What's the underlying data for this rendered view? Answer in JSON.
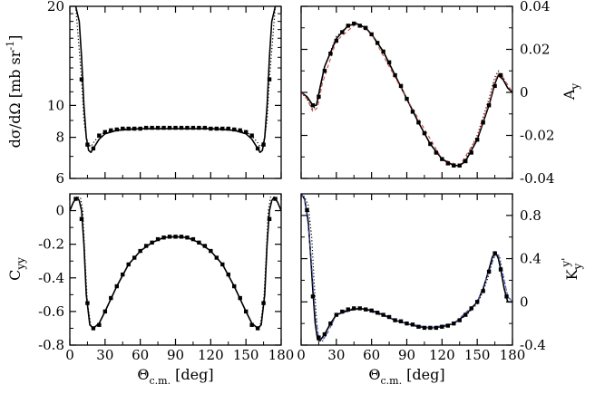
{
  "chart_data": [
    {
      "type": "line",
      "panel": "top-left",
      "ylabel": "dσ/dΩ [mb sr⁻¹]",
      "yscale": "log",
      "xlim": [
        0,
        180
      ],
      "ylim": [
        6,
        20
      ],
      "xticks": [
        0,
        30,
        60,
        90,
        120,
        150,
        180
      ],
      "yticks": [
        {
          "value": 6,
          "label": "6"
        },
        {
          "value": 8,
          "label": "8"
        },
        {
          "value": 10,
          "label": "10"
        },
        {
          "value": 20,
          "label": "20"
        }
      ],
      "series": [
        {
          "style": "solid",
          "color": "#000000",
          "x": [
            5,
            8,
            10,
            12,
            14,
            16,
            18,
            20,
            25,
            30,
            40,
            50,
            60,
            70,
            80,
            90,
            100,
            110,
            120,
            130,
            140,
            150,
            155,
            160,
            162,
            164,
            166,
            168,
            170,
            172,
            175
          ],
          "y": [
            20,
            18,
            14,
            10,
            8,
            7.3,
            7.2,
            7.4,
            7.9,
            8.2,
            8.4,
            8.45,
            8.5,
            8.5,
            8.5,
            8.5,
            8.5,
            8.5,
            8.5,
            8.45,
            8.4,
            8.2,
            7.9,
            7.4,
            7.2,
            7.3,
            8,
            10,
            14,
            18,
            20
          ]
        },
        {
          "style": "dotted",
          "color": "#000000",
          "x": [
            5,
            10,
            12,
            14,
            16,
            18,
            20,
            25,
            30,
            40,
            50,
            60,
            70,
            80,
            90,
            100,
            110,
            120,
            130,
            140,
            150,
            155,
            160,
            162,
            164,
            166,
            168,
            170,
            175
          ],
          "y": [
            20,
            12,
            9,
            8,
            7.6,
            7.5,
            7.7,
            8.1,
            8.3,
            8.45,
            8.5,
            8.5,
            8.5,
            8.5,
            8.5,
            8.5,
            8.5,
            8.5,
            8.5,
            8.45,
            8.3,
            8.1,
            7.7,
            7.5,
            7.6,
            8,
            9,
            12,
            20
          ]
        },
        {
          "style": "squares",
          "color": "#000000",
          "x": [
            10,
            15,
            20,
            25,
            30,
            35,
            40,
            45,
            50,
            55,
            60,
            65,
            70,
            75,
            80,
            85,
            90,
            95,
            100,
            105,
            110,
            115,
            120,
            125,
            130,
            135,
            140,
            145,
            150,
            155,
            160,
            165,
            170
          ],
          "y": [
            12,
            7.6,
            7.4,
            8.1,
            8.3,
            8.4,
            8.45,
            8.5,
            8.5,
            8.5,
            8.5,
            8.55,
            8.55,
            8.55,
            8.55,
            8.55,
            8.55,
            8.55,
            8.55,
            8.55,
            8.55,
            8.55,
            8.5,
            8.5,
            8.5,
            8.5,
            8.45,
            8.4,
            8.3,
            8.1,
            7.4,
            7.6,
            12
          ]
        }
      ]
    },
    {
      "type": "line",
      "panel": "top-right",
      "ylabel": "Ay",
      "ylabel_main": "A",
      "ylabel_sub": "y",
      "xlim": [
        0,
        180
      ],
      "ylim": [
        -0.04,
        0.04
      ],
      "xticks": [
        0,
        30,
        60,
        90,
        120,
        150,
        180
      ],
      "yticks": [
        {
          "value": -0.04,
          "label": "-0.04"
        },
        {
          "value": -0.02,
          "label": "-0.02"
        },
        {
          "value": 0,
          "label": "0"
        },
        {
          "value": 0.02,
          "label": "0.02"
        },
        {
          "value": 0.04,
          "label": "0.04"
        }
      ],
      "series": [
        {
          "style": "solid",
          "color": "#000000",
          "x": [
            0,
            5,
            10,
            13,
            16,
            20,
            30,
            40,
            47,
            55,
            60,
            70,
            80,
            90,
            100,
            110,
            120,
            130,
            135,
            140,
            150,
            160,
            165,
            168,
            172,
            176,
            180
          ],
          "y": [
            0,
            -0.002,
            -0.006,
            -0.006,
            0.002,
            0.012,
            0.025,
            0.031,
            0.032,
            0.03,
            0.027,
            0.019,
            0.008,
            -0.003,
            -0.014,
            -0.024,
            -0.031,
            -0.034,
            -0.034,
            -0.032,
            -0.022,
            -0.006,
            0.004,
            0.008,
            0.006,
            0.002,
            0
          ]
        },
        {
          "style": "dotted",
          "color": "#000000",
          "x": [
            0,
            5,
            10,
            14,
            18,
            20,
            30,
            40,
            47,
            55,
            60,
            70,
            80,
            90,
            100,
            110,
            120,
            130,
            135,
            140,
            150,
            160,
            165,
            168,
            172,
            176,
            180
          ],
          "y": [
            0,
            -0.003,
            -0.008,
            -0.005,
            0.006,
            0.012,
            0.026,
            0.031,
            0.032,
            0.03,
            0.027,
            0.019,
            0.008,
            -0.003,
            -0.014,
            -0.024,
            -0.031,
            -0.034,
            -0.034,
            -0.031,
            -0.02,
            -0.003,
            0.007,
            0.01,
            0.007,
            0.002,
            0
          ]
        },
        {
          "style": "dashed",
          "color": "#d04a4a",
          "x": [
            0,
            5,
            10,
            14,
            18,
            30,
            47,
            60,
            90,
            120,
            135,
            150,
            160,
            165,
            168,
            172,
            180
          ],
          "y": [
            0,
            -0.003,
            -0.009,
            -0.007,
            0.004,
            0.024,
            0.032,
            0.027,
            -0.003,
            -0.031,
            -0.034,
            -0.021,
            -0.005,
            0.005,
            0.009,
            0.007,
            0
          ]
        },
        {
          "style": "squares",
          "color": "#000000",
          "x": [
            10,
            15,
            20,
            25,
            30,
            35,
            40,
            45,
            50,
            55,
            60,
            65,
            70,
            75,
            80,
            85,
            90,
            95,
            100,
            105,
            110,
            115,
            120,
            125,
            130,
            135,
            140,
            145,
            150,
            155,
            160,
            165,
            170
          ],
          "y": [
            -0.006,
            -0.002,
            0.01,
            0.018,
            0.024,
            0.028,
            0.031,
            0.032,
            0.031,
            0.03,
            0.027,
            0.023,
            0.019,
            0.014,
            0.008,
            0.003,
            -0.003,
            -0.009,
            -0.014,
            -0.019,
            -0.024,
            -0.028,
            -0.031,
            -0.033,
            -0.034,
            -0.034,
            -0.032,
            -0.028,
            -0.022,
            -0.014,
            -0.006,
            0.003,
            0.008
          ]
        }
      ]
    },
    {
      "type": "line",
      "panel": "bottom-left",
      "ylabel": "Cyy",
      "ylabel_main": "C",
      "ylabel_sub": "yy",
      "xlabel": "Θc.m. [deg]",
      "xlabel_main": "Θ",
      "xlabel_sub": "c.m.",
      "xlabel_unit": " [deg]",
      "xlim": [
        0,
        180
      ],
      "ylim": [
        -0.8,
        0.1
      ],
      "xticks": [
        0,
        30,
        60,
        90,
        120,
        150,
        180
      ],
      "xtick_labels": [
        "0",
        "30",
        "60",
        "90",
        "120",
        "150",
        "180"
      ],
      "yticks": [
        {
          "value": -0.8,
          "label": "-0.8"
        },
        {
          "value": -0.6,
          "label": "-0.6"
        },
        {
          "value": -0.4,
          "label": "-0.4"
        },
        {
          "value": -0.2,
          "label": "-0.2"
        },
        {
          "value": 0,
          "label": "0"
        }
      ],
      "series": [
        {
          "style": "solid",
          "color": "#000000",
          "x": [
            0,
            3,
            6,
            8,
            10,
            12,
            14,
            17,
            20,
            25,
            30,
            40,
            50,
            60,
            70,
            80,
            90,
            100,
            110,
            120,
            130,
            140,
            150,
            155,
            160,
            163,
            166,
            168,
            170,
            172,
            174,
            177,
            180
          ],
          "y": [
            0,
            0.05,
            0.08,
            0.06,
            0,
            -0.2,
            -0.5,
            -0.68,
            -0.7,
            -0.67,
            -0.6,
            -0.45,
            -0.32,
            -0.24,
            -0.19,
            -0.16,
            -0.155,
            -0.16,
            -0.19,
            -0.24,
            -0.32,
            -0.45,
            -0.6,
            -0.67,
            -0.7,
            -0.68,
            -0.5,
            -0.2,
            0,
            0.06,
            0.08,
            0.05,
            0
          ]
        },
        {
          "style": "dotted",
          "color": "#000000",
          "x": [
            0,
            3,
            6,
            9,
            11,
            13,
            15,
            18,
            20,
            25,
            30,
            40,
            50,
            60,
            70,
            80,
            90,
            100,
            110,
            120,
            130,
            140,
            150,
            155,
            160,
            162,
            165,
            167,
            169,
            171,
            174,
            177,
            180
          ],
          "y": [
            0,
            0.05,
            0.08,
            0.08,
            0,
            -0.3,
            -0.55,
            -0.69,
            -0.7,
            -0.67,
            -0.6,
            -0.45,
            -0.32,
            -0.24,
            -0.19,
            -0.16,
            -0.155,
            -0.16,
            -0.19,
            -0.24,
            -0.32,
            -0.45,
            -0.6,
            -0.67,
            -0.7,
            -0.69,
            -0.55,
            -0.3,
            0,
            0.08,
            0.08,
            0.05,
            0
          ]
        },
        {
          "style": "squares",
          "color": "#000000",
          "x": [
            5,
            10,
            15,
            20,
            25,
            30,
            35,
            40,
            45,
            50,
            55,
            60,
            65,
            70,
            75,
            80,
            85,
            90,
            95,
            100,
            105,
            110,
            115,
            120,
            125,
            130,
            135,
            140,
            145,
            150,
            155,
            160,
            165,
            170,
            175
          ],
          "y": [
            0.07,
            -0.05,
            -0.55,
            -0.7,
            -0.68,
            -0.6,
            -0.52,
            -0.45,
            -0.38,
            -0.32,
            -0.28,
            -0.24,
            -0.21,
            -0.19,
            -0.17,
            -0.16,
            -0.155,
            -0.155,
            -0.155,
            -0.16,
            -0.17,
            -0.19,
            -0.21,
            -0.24,
            -0.28,
            -0.32,
            -0.38,
            -0.45,
            -0.52,
            -0.6,
            -0.68,
            -0.7,
            -0.55,
            -0.05,
            0.07
          ]
        }
      ]
    },
    {
      "type": "line",
      "panel": "bottom-right",
      "ylabel": "Kyy'",
      "ylabel_main": "K",
      "ylabel_sub": "y",
      "ylabel_sup": "y'",
      "xlabel": "Θc.m. [deg]",
      "xlabel_main": "Θ",
      "xlabel_sub": "c.m.",
      "xlabel_unit": " [deg]",
      "xlim": [
        0,
        180
      ],
      "ylim": [
        -0.4,
        1.0
      ],
      "xticks": [
        0,
        30,
        60,
        90,
        120,
        150,
        180
      ],
      "xtick_labels": [
        "0",
        "30",
        "60",
        "90",
        "120",
        "150",
        "180"
      ],
      "yticks": [
        {
          "value": -0.4,
          "label": "-0.4"
        },
        {
          "value": 0,
          "label": "0"
        },
        {
          "value": 0.4,
          "label": "0.4"
        },
        {
          "value": 0.8,
          "label": "0.8"
        }
      ],
      "series": [
        {
          "style": "solid",
          "color": "#000000",
          "x": [
            0,
            3,
            6,
            8,
            10,
            12,
            14,
            16,
            20,
            25,
            30,
            40,
            50,
            60,
            70,
            80,
            90,
            100,
            110,
            120,
            130,
            140,
            150,
            155,
            160,
            163,
            166,
            168,
            170,
            173,
            176,
            180
          ],
          "y": [
            1,
            0.95,
            0.75,
            0.45,
            0.1,
            -0.2,
            -0.35,
            -0.36,
            -0.3,
            -0.2,
            -0.12,
            -0.08,
            -0.06,
            -0.08,
            -0.12,
            -0.17,
            -0.2,
            -0.23,
            -0.24,
            -0.23,
            -0.2,
            -0.12,
            0,
            0.12,
            0.3,
            0.42,
            0.45,
            0.4,
            0.3,
            0.12,
            0,
            0
          ]
        },
        {
          "style": "dotted",
          "color": "#000000",
          "x": [
            0,
            3,
            6,
            9,
            11,
            13,
            15,
            18,
            20,
            25,
            30,
            40,
            50,
            60,
            70,
            80,
            90,
            100,
            110,
            120,
            130,
            140,
            150,
            155,
            160,
            163,
            166,
            169,
            172,
            176,
            180
          ],
          "y": [
            1,
            0.97,
            0.9,
            0.6,
            0.2,
            -0.15,
            -0.35,
            -0.37,
            -0.32,
            -0.2,
            -0.12,
            -0.07,
            -0.06,
            -0.08,
            -0.12,
            -0.17,
            -0.2,
            -0.23,
            -0.24,
            -0.23,
            -0.2,
            -0.13,
            -0.02,
            0.1,
            0.25,
            0.38,
            0.46,
            0.42,
            0.25,
            0.05,
            0
          ]
        },
        {
          "style": "dashed",
          "color": "#4a5bd0",
          "x": [
            0,
            3,
            6,
            9,
            12,
            15,
            18,
            22,
            30,
            50,
            90,
            110,
            130,
            150,
            160,
            165,
            168,
            172,
            176,
            180
          ],
          "y": [
            1,
            0.95,
            0.7,
            0.35,
            -0.1,
            -0.33,
            -0.36,
            -0.3,
            -0.12,
            -0.06,
            -0.2,
            -0.24,
            -0.2,
            0,
            0.28,
            0.43,
            0.44,
            0.25,
            0.05,
            0
          ]
        },
        {
          "style": "squares",
          "color": "#000000",
          "x": [
            5,
            10,
            15,
            20,
            25,
            30,
            35,
            40,
            45,
            50,
            55,
            60,
            65,
            70,
            75,
            80,
            85,
            90,
            95,
            100,
            105,
            110,
            115,
            120,
            125,
            130,
            135,
            140,
            145,
            150,
            155,
            160,
            165,
            170,
            175
          ],
          "y": [
            0.85,
            0.05,
            -0.33,
            -0.3,
            -0.2,
            -0.12,
            -0.09,
            -0.07,
            -0.06,
            -0.06,
            -0.07,
            -0.08,
            -0.1,
            -0.12,
            -0.14,
            -0.17,
            -0.18,
            -0.2,
            -0.21,
            -0.23,
            -0.24,
            -0.24,
            -0.24,
            -0.23,
            -0.22,
            -0.2,
            -0.17,
            -0.12,
            -0.06,
            0,
            0.1,
            0.28,
            0.45,
            0.3,
            0.05
          ]
        }
      ]
    }
  ]
}
